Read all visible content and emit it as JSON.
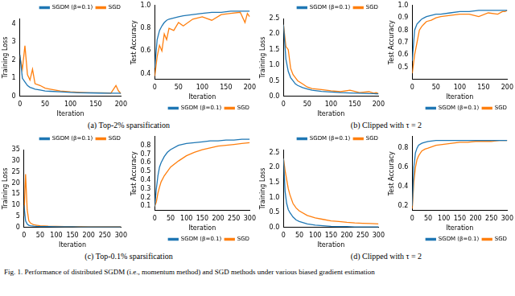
{
  "chart_data": [
    {
      "type": "line",
      "x_label": "Iteration",
      "y_label": "Training Loss",
      "xlim": [
        0,
        200
      ],
      "xticks": [
        0,
        50,
        100,
        150,
        200
      ],
      "ylim": [
        0,
        4.3
      ],
      "yticks": [
        0,
        1,
        2,
        3,
        4
      ],
      "grid": false,
      "legend": "upper right",
      "x": [
        0,
        5,
        10,
        15,
        20,
        25,
        30,
        40,
        50,
        60,
        80,
        100,
        120,
        140,
        160,
        180,
        190,
        195,
        200
      ],
      "series": [
        {
          "name": "SGDM (β=0.1)",
          "color": "#1f77b4",
          "values": [
            2.3,
            1.0,
            0.8,
            0.6,
            0.5,
            0.45,
            0.4,
            0.35,
            0.3,
            0.28,
            0.25,
            0.22,
            0.2,
            0.19,
            0.18,
            0.17,
            0.17,
            0.17,
            0.16
          ]
        },
        {
          "name": "SGD",
          "color": "#ff7f0e",
          "values": [
            2.2,
            1.5,
            2.8,
            1.2,
            0.9,
            1.5,
            0.7,
            0.6,
            0.45,
            0.4,
            0.3,
            0.25,
            0.22,
            0.2,
            0.2,
            0.18,
            0.6,
            0.3,
            0.15
          ]
        }
      ]
    },
    {
      "type": "line",
      "x_label": "Iteration",
      "y_label": "Test Accuracy",
      "xlim": [
        0,
        200
      ],
      "xticks": [
        0,
        50,
        100,
        150,
        200
      ],
      "ylim": [
        0.35,
        1.0
      ],
      "yticks": [
        0.4,
        0.6,
        0.8,
        {
          "value": 1,
          "label": "1.0"
        }
      ],
      "grid": false,
      "legend": "lower right",
      "x": [
        0,
        5,
        10,
        15,
        20,
        25,
        30,
        40,
        50,
        60,
        80,
        100,
        120,
        140,
        160,
        180,
        190,
        195,
        200
      ],
      "series": [
        {
          "name": "SGDM (β=0.1)",
          "color": "#1f77b4",
          "values": [
            0.45,
            0.7,
            0.78,
            0.82,
            0.85,
            0.87,
            0.88,
            0.89,
            0.9,
            0.91,
            0.92,
            0.93,
            0.94,
            0.94,
            0.95,
            0.95,
            0.95,
            0.95,
            0.95
          ]
        },
        {
          "name": "SGD",
          "color": "#ff7f0e",
          "values": [
            0.38,
            0.55,
            0.65,
            0.6,
            0.75,
            0.7,
            0.8,
            0.78,
            0.85,
            0.82,
            0.88,
            0.9,
            0.87,
            0.92,
            0.93,
            0.94,
            0.85,
            0.93,
            0.9
          ]
        }
      ]
    },
    {
      "type": "line",
      "x_label": "Iteration",
      "y_label": "Training Loss",
      "xlim": [
        0,
        200
      ],
      "xticks": [
        0,
        50,
        100,
        150,
        200
      ],
      "ylim": [
        0,
        2.5
      ],
      "yticks": [
        {
          "value": 0,
          "label": "0.0"
        },
        0.5,
        {
          "value": 1,
          "label": "1.0"
        },
        1.5,
        {
          "value": 2,
          "label": "2.0"
        },
        2.5
      ],
      "grid": false,
      "legend": "upper right",
      "x": [
        0,
        5,
        10,
        15,
        20,
        25,
        30,
        40,
        50,
        60,
        80,
        100,
        120,
        140,
        160,
        180,
        190,
        195,
        200
      ],
      "series": [
        {
          "name": "SGDM (β=0.1)",
          "color": "#1f77b4",
          "values": [
            2.3,
            1.2,
            0.8,
            0.6,
            0.5,
            0.4,
            0.35,
            0.28,
            0.24,
            0.2,
            0.16,
            0.14,
            0.12,
            0.11,
            0.1,
            0.09,
            0.09,
            0.08,
            0.08
          ]
        },
        {
          "name": "SGD",
          "color": "#ff7f0e",
          "values": [
            2.3,
            1.6,
            1.5,
            0.9,
            0.7,
            0.6,
            0.5,
            0.4,
            0.3,
            0.25,
            0.22,
            0.18,
            0.15,
            0.2,
            0.12,
            0.15,
            0.1,
            0.12,
            0.09
          ]
        }
      ]
    },
    {
      "type": "line",
      "x_label": "Iteration",
      "y_label": "Test Accuracy",
      "xlim": [
        0,
        200
      ],
      "xticks": [
        0,
        50,
        100,
        150,
        200
      ],
      "ylim": [
        0.4,
        1.0
      ],
      "yticks": [
        0.5,
        0.6,
        0.7,
        0.8,
        0.9,
        {
          "value": 1,
          "label": "1.0"
        }
      ],
      "grid": false,
      "legend": "lower right",
      "x": [
        0,
        5,
        10,
        15,
        20,
        25,
        30,
        40,
        50,
        60,
        80,
        100,
        120,
        140,
        160,
        180,
        190,
        195,
        200
      ],
      "series": [
        {
          "name": "SGDM (β=0.1)",
          "color": "#1f77b4",
          "values": [
            0.55,
            0.8,
            0.85,
            0.87,
            0.89,
            0.9,
            0.91,
            0.92,
            0.93,
            0.93,
            0.94,
            0.95,
            0.95,
            0.96,
            0.96,
            0.96,
            0.96,
            0.96,
            0.96
          ]
        },
        {
          "name": "SGD",
          "color": "#ff7f0e",
          "values": [
            0.45,
            0.6,
            0.7,
            0.8,
            0.83,
            0.85,
            0.87,
            0.88,
            0.9,
            0.91,
            0.92,
            0.93,
            0.93,
            0.91,
            0.94,
            0.93,
            0.95,
            0.95,
            0.96
          ]
        }
      ]
    },
    {
      "type": "line",
      "x_label": "Iteration",
      "y_label": "Training Loss",
      "xlim": [
        0,
        300
      ],
      "xticks": [
        0,
        50,
        100,
        150,
        200,
        250,
        300
      ],
      "ylim": [
        0,
        35
      ],
      "yticks": [
        0,
        5,
        10,
        15,
        20,
        25,
        30,
        35
      ],
      "grid": false,
      "legend": "upper right",
      "x": [
        0,
        5,
        10,
        15,
        20,
        30,
        40,
        50,
        75,
        100,
        125,
        150,
        175,
        200,
        225,
        250,
        275,
        300
      ],
      "series": [
        {
          "name": "SGDM (β=0.1)",
          "color": "#1f77b4",
          "values": [
            10,
            3,
            1.5,
            1,
            0.8,
            0.6,
            0.5,
            0.45,
            0.4,
            0.35,
            0.3,
            0.3,
            0.28,
            0.27,
            0.26,
            0.25,
            0.25,
            0.24
          ]
        },
        {
          "name": "SGD",
          "color": "#ff7f0e",
          "values": [
            5,
            24,
            8,
            3,
            2,
            1.2,
            1,
            0.8,
            0.6,
            0.5,
            0.45,
            0.4,
            0.38,
            0.35,
            0.33,
            0.32,
            0.3,
            0.3
          ]
        }
      ]
    },
    {
      "type": "line",
      "x_label": "Iteration",
      "y_label": "Test Accuracy",
      "xlim": [
        0,
        300
      ],
      "xticks": [
        0,
        50,
        100,
        150,
        200,
        250,
        300
      ],
      "ylim": [
        0.05,
        0.9
      ],
      "yticks": [
        0.1,
        0.2,
        0.3,
        0.4,
        0.5,
        0.6,
        0.7,
        0.8
      ],
      "grid": false,
      "legend": "lower right",
      "x": [
        0,
        5,
        10,
        15,
        20,
        30,
        40,
        50,
        75,
        100,
        125,
        150,
        175,
        200,
        225,
        250,
        275,
        300
      ],
      "series": [
        {
          "name": "SGDM (β=0.1)",
          "color": "#1f77b4",
          "values": [
            0.1,
            0.3,
            0.45,
            0.55,
            0.6,
            0.67,
            0.72,
            0.75,
            0.8,
            0.82,
            0.83,
            0.84,
            0.85,
            0.85,
            0.86,
            0.86,
            0.87,
            0.87
          ]
        },
        {
          "name": "SGD",
          "color": "#ff7f0e",
          "values": [
            0.1,
            0.15,
            0.25,
            0.32,
            0.38,
            0.45,
            0.5,
            0.55,
            0.62,
            0.68,
            0.72,
            0.75,
            0.77,
            0.79,
            0.8,
            0.81,
            0.82,
            0.83
          ]
        }
      ]
    },
    {
      "type": "line",
      "x_label": "Iteration",
      "y_label": "Training Loss",
      "xlim": [
        0,
        300
      ],
      "xticks": [
        0,
        50,
        100,
        150,
        200,
        250,
        300
      ],
      "ylim": [
        0,
        2.6
      ],
      "yticks": [
        {
          "value": 0,
          "label": "0.0"
        },
        0.5,
        {
          "value": 1,
          "label": "1.0"
        },
        1.5,
        {
          "value": 2,
          "label": "2.0"
        },
        2.5
      ],
      "grid": false,
      "legend": "upper right",
      "x": [
        0,
        5,
        10,
        15,
        20,
        30,
        40,
        50,
        75,
        100,
        125,
        150,
        175,
        200,
        225,
        250,
        275,
        300
      ],
      "series": [
        {
          "name": "SGDM (β=0.1)",
          "color": "#1f77b4",
          "values": [
            2.3,
            1.2,
            0.8,
            0.6,
            0.5,
            0.35,
            0.25,
            0.2,
            0.12,
            0.08,
            0.06,
            0.04,
            0.03,
            0.03,
            0.02,
            0.02,
            0.02,
            0.02
          ]
        },
        {
          "name": "SGD",
          "color": "#ff7f0e",
          "values": [
            2.3,
            1.9,
            1.6,
            1.3,
            1.1,
            0.8,
            0.65,
            0.55,
            0.4,
            0.32,
            0.27,
            0.22,
            0.2,
            0.17,
            0.15,
            0.14,
            0.13,
            0.12
          ]
        }
      ]
    },
    {
      "type": "line",
      "x_label": "Iteration",
      "y_label": "Test Accuracy",
      "xlim": [
        0,
        300
      ],
      "xticks": [
        0,
        50,
        100,
        150,
        200,
        250,
        300
      ],
      "ylim": [
        0.15,
        0.92
      ],
      "yticks": [
        0.2,
        0.4,
        0.6,
        0.8
      ],
      "grid": false,
      "legend": "lower right",
      "x": [
        0,
        5,
        10,
        15,
        20,
        30,
        40,
        50,
        75,
        100,
        125,
        150,
        175,
        200,
        225,
        250,
        275,
        300
      ],
      "series": [
        {
          "name": "SGDM (β=0.1)",
          "color": "#1f77b4",
          "values": [
            0.2,
            0.6,
            0.75,
            0.8,
            0.83,
            0.85,
            0.86,
            0.87,
            0.88,
            0.88,
            0.88,
            0.88,
            0.88,
            0.88,
            0.88,
            0.88,
            0.88,
            0.88
          ]
        },
        {
          "name": "SGD",
          "color": "#ff7f0e",
          "values": [
            0.17,
            0.45,
            0.6,
            0.68,
            0.72,
            0.77,
            0.79,
            0.8,
            0.83,
            0.84,
            0.85,
            0.86,
            0.86,
            0.87,
            0.87,
            0.87,
            0.88,
            0.88
          ]
        }
      ]
    }
  ],
  "captions": [
    "(a) Top-2% sparsification",
    "(b) Clipped with τ = 2",
    "(c) Top-0.1% sparsification",
    "(d) Clipped with τ = 2"
  ],
  "figure_caption": "Fig. 1. Performance of distributed SGDM (i.e., momentum method) and SGD methods under various biased gradient estimation"
}
